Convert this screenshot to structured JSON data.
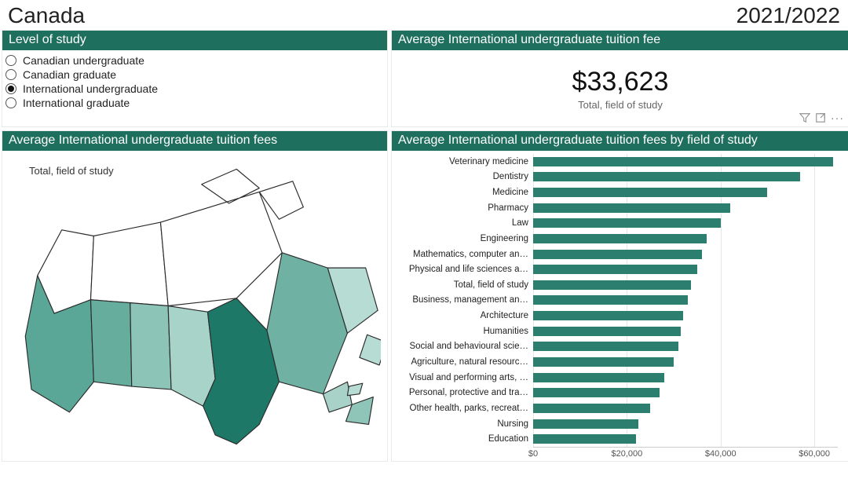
{
  "header": {
    "country": "Canada",
    "year": "2021/2022"
  },
  "accent_color": "#1f6f5e",
  "level_of_study": {
    "title": "Level of study",
    "selected_index": 2,
    "options": [
      "Canadian undergraduate",
      "Canadian graduate",
      "International undergraduate",
      "International graduate"
    ]
  },
  "kpi_card": {
    "title": "Average International undergraduate tuition fee",
    "value": "$33,623",
    "subtitle": "Total, field of study"
  },
  "map_panel": {
    "title": "Average International undergraduate tuition fees",
    "caption": "Total, field of study",
    "outline_color": "#2b2b2b",
    "no_data_fill": "#ffffff",
    "provinces": [
      {
        "code": "BC",
        "name": "British Columbia",
        "value": 31000,
        "color": "#5ba797"
      },
      {
        "code": "AB",
        "name": "Alberta",
        "value": 29000,
        "color": "#66ad9e"
      },
      {
        "code": "SK",
        "name": "Saskatchewan",
        "value": 23000,
        "color": "#8cc4b8"
      },
      {
        "code": "MB",
        "name": "Manitoba",
        "value": 19000,
        "color": "#a8d3c9"
      },
      {
        "code": "ON",
        "name": "Ontario",
        "value": 42000,
        "color": "#1e7868"
      },
      {
        "code": "QC",
        "name": "Quebec",
        "value": 28000,
        "color": "#6fb2a3"
      },
      {
        "code": "NB",
        "name": "New Brunswick",
        "value": 17000,
        "color": "#a8d2c8"
      },
      {
        "code": "NS",
        "name": "Nova Scotia",
        "value": 21000,
        "color": "#8fc5b9"
      },
      {
        "code": "PE",
        "name": "Prince Edward Island",
        "value": 15000,
        "color": "#b7dcd3"
      },
      {
        "code": "NL",
        "name": "Newfoundland and Labrador",
        "value": 14000,
        "color": "#b7dcd3"
      },
      {
        "code": "YT",
        "name": "Yukon",
        "value": null,
        "color": "#ffffff"
      },
      {
        "code": "NT",
        "name": "Northwest Territories",
        "value": null,
        "color": "#ffffff"
      },
      {
        "code": "NU",
        "name": "Nunavut",
        "value": null,
        "color": "#ffffff"
      }
    ]
  },
  "bar_chart": {
    "title": "Average International undergraduate tuition fees by field of study",
    "type": "bar-horizontal",
    "bar_color": "#2c7f6f",
    "label_fontsize": 11.5,
    "grid_color": "#e6e6e6",
    "background_color": "#ffffff",
    "x_axis": {
      "min": 0,
      "max": 65000,
      "ticks": [
        0,
        20000,
        40000,
        60000
      ],
      "tick_labels": [
        "$0",
        "$20,000",
        "$40,000",
        "$60,000"
      ]
    },
    "items": [
      {
        "label": "Veterinary medicine",
        "value": 64000
      },
      {
        "label": "Dentistry",
        "value": 57000
      },
      {
        "label": "Medicine",
        "value": 50000
      },
      {
        "label": "Pharmacy",
        "value": 42000
      },
      {
        "label": "Law",
        "value": 40000
      },
      {
        "label": "Engineering",
        "value": 37000
      },
      {
        "label": "Mathematics, computer an…",
        "value": 36000
      },
      {
        "label": "Physical and life sciences a…",
        "value": 35000
      },
      {
        "label": "Total, field of study",
        "value": 33623
      },
      {
        "label": "Business, management an…",
        "value": 33000
      },
      {
        "label": "Architecture",
        "value": 32000
      },
      {
        "label": "Humanities",
        "value": 31500
      },
      {
        "label": "Social and behavioural scie…",
        "value": 31000
      },
      {
        "label": "Agriculture, natural resourc…",
        "value": 30000
      },
      {
        "label": "Visual and performing arts, …",
        "value": 28000
      },
      {
        "label": "Personal, protective and tra…",
        "value": 27000
      },
      {
        "label": "Other health, parks, recreat…",
        "value": 25000
      },
      {
        "label": "Nursing",
        "value": 22500
      },
      {
        "label": "Education",
        "value": 22000
      }
    ]
  }
}
